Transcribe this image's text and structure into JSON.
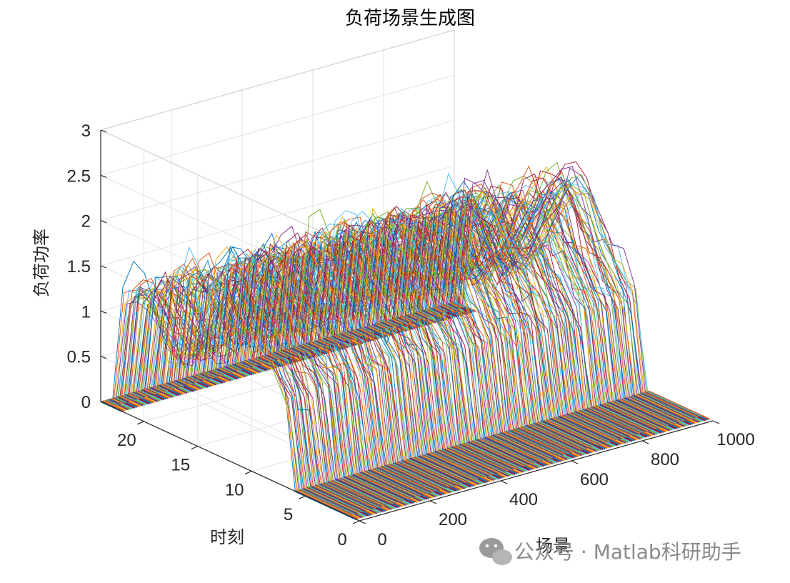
{
  "chart_data": {
    "type": "line",
    "view": "3d",
    "title": "负荷场景生成图",
    "xlabel": "场景",
    "ylabel": "时刻",
    "zlabel": "负荷功率",
    "xlim": [
      0,
      1000
    ],
    "ylim": [
      0,
      24
    ],
    "zlim": [
      0,
      3
    ],
    "x_ticks": [
      "0",
      "200",
      "400",
      "600",
      "800",
      "1000"
    ],
    "y_ticks": [
      "0",
      "5",
      "10",
      "15",
      "20"
    ],
    "z_ticks": [
      "0",
      "0.5",
      "1",
      "1.5",
      "2",
      "2.5",
      "3"
    ],
    "grid": true,
    "scenario_count": 1000,
    "hours": [
      1,
      2,
      3,
      4,
      5,
      6,
      7,
      8,
      9,
      10,
      11,
      12,
      13,
      14,
      15,
      16,
      17,
      18,
      19,
      20,
      21,
      22,
      23,
      24
    ],
    "mean_profile": [
      0,
      0,
      0,
      0,
      0,
      0,
      1.0,
      1.2,
      1.4,
      1.6,
      1.85,
      2.0,
      1.9,
      1.6,
      1.3,
      1.0,
      0.85,
      0.9,
      1.1,
      1.3,
      1.35,
      1.2,
      0,
      0
    ],
    "series_colors": [
      "#0072BD",
      "#D95319",
      "#EDB120",
      "#7E2F8E",
      "#77AC30",
      "#4DBEEE",
      "#A2142F"
    ]
  },
  "watermark": {
    "icon": "wechat-icon",
    "text": "公众号 · Matlab科研助手"
  }
}
